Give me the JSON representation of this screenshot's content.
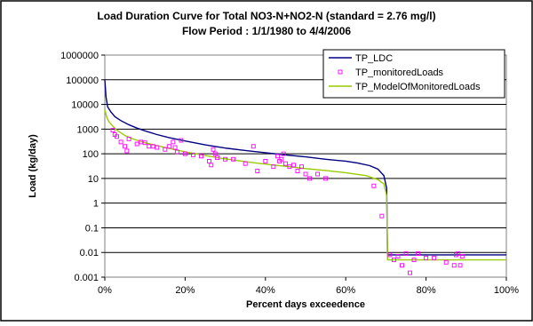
{
  "chart_data": {
    "type": "line",
    "title": "Load Duration Curve for Total NO3-N+NO2-N (standard = 2.76 mg/l)",
    "subtitle": "Flow Period : 1/1/1980 to 4/4/2006",
    "xlabel": "Percent days exceedence",
    "ylabel": "Load (kg/day)",
    "x_scale": "linear",
    "y_scale": "log",
    "xlim": [
      0,
      100
    ],
    "ylim": [
      0.001,
      1000000
    ],
    "x_ticks": [
      0,
      20,
      40,
      60,
      80,
      100
    ],
    "x_tick_labels": [
      "0%",
      "20%",
      "40%",
      "60%",
      "80%",
      "100%"
    ],
    "y_ticks": [
      0.001,
      0.01,
      0.1,
      1,
      10,
      100,
      1000,
      10000,
      100000,
      1000000
    ],
    "y_tick_labels": [
      "0.001",
      "0.01",
      "0.1",
      "1",
      "10",
      "100",
      "1000",
      "10000",
      "100000",
      "1000000"
    ],
    "grid": "horizontal",
    "legend_position": "top-right",
    "series": [
      {
        "name": "TP_LDC",
        "kind": "line",
        "color": "#000080",
        "points": [
          [
            0,
            100000
          ],
          [
            0.3,
            20000
          ],
          [
            0.7,
            8000
          ],
          [
            1.5,
            5000
          ],
          [
            2.5,
            3200
          ],
          [
            4,
            2200
          ],
          [
            6,
            1500
          ],
          [
            8,
            1100
          ],
          [
            10,
            850
          ],
          [
            13,
            600
          ],
          [
            16,
            450
          ],
          [
            20,
            330
          ],
          [
            25,
            230
          ],
          [
            30,
            170
          ],
          [
            35,
            135
          ],
          [
            40,
            110
          ],
          [
            45,
            90
          ],
          [
            50,
            75
          ],
          [
            55,
            60
          ],
          [
            60,
            50
          ],
          [
            63,
            42
          ],
          [
            66,
            33
          ],
          [
            68,
            24
          ],
          [
            69.5,
            13
          ],
          [
            70.2,
            4
          ],
          [
            70.4,
            0.008
          ],
          [
            73,
            0.008
          ],
          [
            80,
            0.008
          ],
          [
            90,
            0.008
          ],
          [
            100,
            0.008
          ]
        ]
      },
      {
        "name": "TP_ModelOfMonitoredLoads",
        "kind": "line",
        "color": "#99CC00",
        "points": [
          [
            0,
            6000
          ],
          [
            0.5,
            3000
          ],
          [
            1,
            2000
          ],
          [
            2,
            1300
          ],
          [
            3,
            900
          ],
          [
            5,
            550
          ],
          [
            7,
            400
          ],
          [
            10,
            280
          ],
          [
            15,
            180
          ],
          [
            20,
            120
          ],
          [
            25,
            85
          ],
          [
            30,
            62
          ],
          [
            35,
            48
          ],
          [
            40,
            38
          ],
          [
            45,
            31
          ],
          [
            50,
            25
          ],
          [
            55,
            21
          ],
          [
            60,
            17
          ],
          [
            65,
            13
          ],
          [
            68,
            9
          ],
          [
            69.5,
            6
          ],
          [
            70.2,
            2
          ],
          [
            70.4,
            0.005
          ],
          [
            75,
            0.005
          ],
          [
            85,
            0.005
          ],
          [
            100,
            0.005
          ]
        ]
      },
      {
        "name": "TP_monitoredLoads",
        "kind": "scatter",
        "color": "#FF00FF",
        "points": [
          [
            2,
            900
          ],
          [
            2.5,
            600
          ],
          [
            3,
            500
          ],
          [
            4,
            300
          ],
          [
            5,
            200
          ],
          [
            5.5,
            130
          ],
          [
            6,
            400
          ],
          [
            8,
            250
          ],
          [
            9,
            300
          ],
          [
            10,
            280
          ],
          [
            11,
            200
          ],
          [
            12,
            200
          ],
          [
            13,
            180
          ],
          [
            15,
            150
          ],
          [
            16,
            200
          ],
          [
            17,
            300
          ],
          [
            17.5,
            180
          ],
          [
            18,
            120
          ],
          [
            19,
            350
          ],
          [
            20,
            100
          ],
          [
            22,
            90
          ],
          [
            24,
            80
          ],
          [
            26,
            50
          ],
          [
            26.5,
            35
          ],
          [
            27,
            150
          ],
          [
            27.5,
            100
          ],
          [
            28,
            70
          ],
          [
            30,
            60
          ],
          [
            32,
            60
          ],
          [
            35,
            40
          ],
          [
            37,
            200
          ],
          [
            38,
            20
          ],
          [
            40,
            50
          ],
          [
            42,
            30
          ],
          [
            43,
            80
          ],
          [
            43.5,
            50
          ],
          [
            44,
            60
          ],
          [
            44.5,
            100
          ],
          [
            45,
            40
          ],
          [
            46,
            30
          ],
          [
            47,
            35
          ],
          [
            48,
            20
          ],
          [
            49,
            30
          ],
          [
            50,
            15
          ],
          [
            51,
            10
          ],
          [
            53,
            15
          ],
          [
            55,
            10
          ],
          [
            67,
            5
          ],
          [
            69,
            0.3
          ],
          [
            71,
            0.008
          ],
          [
            72,
            0.005
          ],
          [
            73,
            0.007
          ],
          [
            74,
            0.003
          ],
          [
            75,
            0.009
          ],
          [
            76,
            0.0015
          ],
          [
            77,
            0.005
          ],
          [
            78,
            0.009
          ],
          [
            80,
            0.006
          ],
          [
            82,
            0.006
          ],
          [
            85,
            0.004
          ],
          [
            87,
            0.003
          ],
          [
            87.5,
            0.008
          ],
          [
            88,
            0.009
          ],
          [
            88.5,
            0.003
          ],
          [
            89,
            0.007
          ]
        ]
      }
    ]
  }
}
